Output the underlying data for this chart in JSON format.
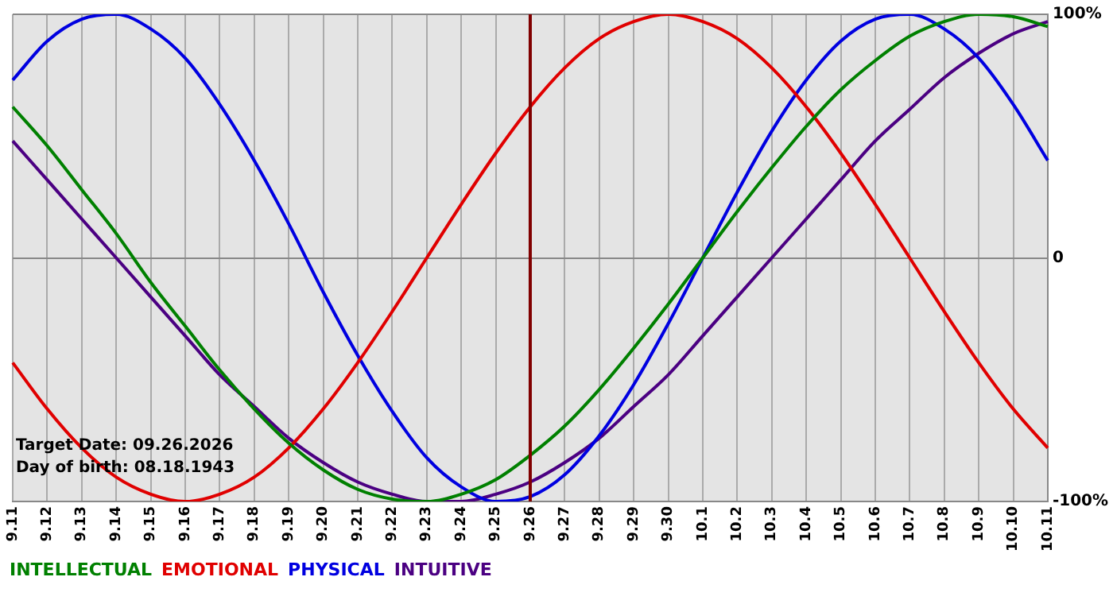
{
  "chart_data": {
    "type": "line",
    "categories": [
      "9.11",
      "9.12",
      "9.13",
      "9.14",
      "9.15",
      "9.16",
      "9.17",
      "9.18",
      "9.19",
      "9.20",
      "9.21",
      "9.22",
      "9.23",
      "9.24",
      "9.25",
      "9.26",
      "9.27",
      "9.28",
      "9.29",
      "9.30",
      "10.1",
      "10.2",
      "10.3",
      "10.4",
      "10.5",
      "10.6",
      "10.7",
      "10.8",
      "10.9",
      "10.10",
      "10.11"
    ],
    "series": [
      {
        "name": "INTELLECTUAL",
        "color": "#008000",
        "values": [
          62,
          46,
          28,
          10,
          -10,
          -28,
          -46,
          -62,
          -76,
          -87,
          -95,
          -99,
          -100,
          -97,
          -91,
          -81,
          -69,
          -54,
          -37,
          -19,
          0,
          19,
          37,
          54,
          69,
          81,
          91,
          97,
          100,
          99,
          95
        ]
      },
      {
        "name": "EMOTIONAL",
        "color": "#e00000",
        "values": [
          -43,
          -62,
          -78,
          -90,
          -97,
          -100,
          -97,
          -90,
          -78,
          -62,
          -43,
          -22,
          0,
          22,
          43,
          62,
          78,
          90,
          97,
          100,
          97,
          90,
          78,
          62,
          43,
          22,
          0,
          -22,
          -43,
          -62,
          -78
        ]
      },
      {
        "name": "PHYSICAL",
        "color": "#0000e0",
        "values": [
          73,
          89,
          98,
          100,
          94,
          82,
          63,
          40,
          14,
          -14,
          -40,
          -63,
          -82,
          -94,
          -100,
          -98,
          -89,
          -73,
          -52,
          -27,
          0,
          27,
          52,
          73,
          89,
          98,
          100,
          94,
          82,
          63,
          40
        ]
      },
      {
        "name": "INTUITIVE",
        "color": "#4b0082",
        "values": [
          48,
          32,
          16,
          0,
          -16,
          -32,
          -48,
          -61,
          -74,
          -84,
          -92,
          -97,
          -100,
          -100,
          -97,
          -92,
          -84,
          -74,
          -61,
          -48,
          -32,
          -16,
          0,
          16,
          32,
          48,
          61,
          74,
          84,
          92,
          97
        ]
      }
    ],
    "ylim": [
      -100,
      100
    ],
    "yticks": [
      {
        "value": -100,
        "label": "-100%"
      },
      0,
      {
        "value": 100,
        "label": "100%"
      }
    ],
    "grid": true,
    "legend": "bottom left",
    "marker": "none",
    "ref_lines": [
      {
        "axis": "x",
        "value": "9.26",
        "color": "#800000"
      }
    ],
    "annotations": [
      "Target Date: 09.26.2026",
      "Day of birth: 08.18.1943"
    ]
  }
}
